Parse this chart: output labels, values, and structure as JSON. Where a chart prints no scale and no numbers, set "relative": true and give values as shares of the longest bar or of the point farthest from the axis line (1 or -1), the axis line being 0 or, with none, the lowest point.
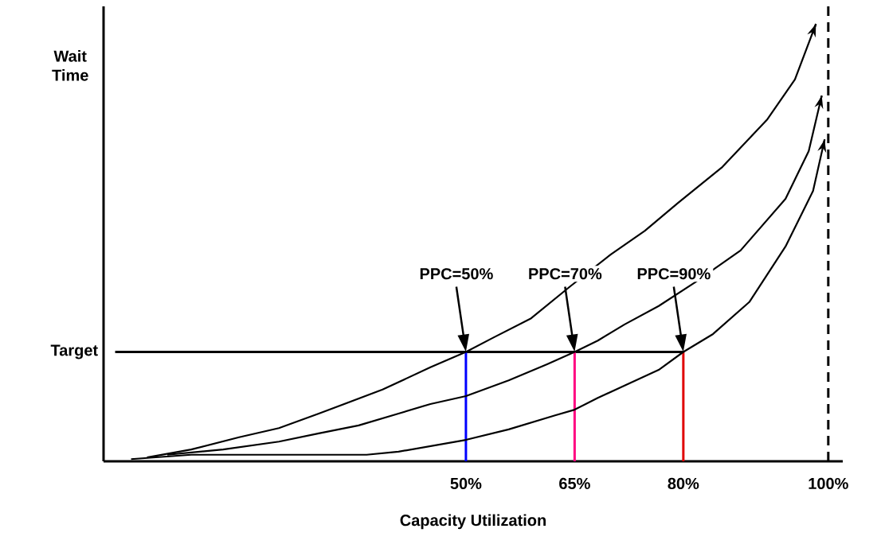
{
  "chart_data": {
    "type": "line",
    "relative": true,
    "xlabel": "Capacity Utilization",
    "ylabel": "Wait Time",
    "xlim": [
      0,
      102
    ],
    "xticks": [
      {
        "value": 50,
        "label": "50%"
      },
      {
        "value": 65,
        "label": "65%"
      },
      {
        "value": 80,
        "label": "80%"
      },
      {
        "value": 100,
        "label": "100%"
      }
    ],
    "series": [
      {
        "color": "#000000",
        "x": [
          6.0,
          12.1,
          18.7,
          24.2,
          29.7,
          38.5,
          45.1,
          50,
          53.7,
          59.0,
          64.4,
          70.0,
          74.7,
          79.3,
          85.4,
          91.6,
          95.4,
          98.3
        ],
        "values": [
          0.009,
          0.027,
          0.055,
          0.076,
          0.109,
          0.164,
          0.215,
          0.25,
          0.282,
          0.327,
          0.4,
          0.473,
          0.527,
          0.591,
          0.673,
          0.782,
          0.873,
          1.0
        ]
      },
      {
        "color": "#000000",
        "x": [
          8.8,
          16.5,
          24.2,
          29.7,
          35.2,
          40.7,
          45.1,
          50,
          55.9,
          61.2,
          65,
          68.2,
          71.9,
          76.6,
          81.6,
          87.9,
          94.1,
          97.3,
          99.1
        ],
        "values": [
          0.015,
          0.027,
          0.045,
          0.064,
          0.082,
          0.109,
          0.131,
          0.149,
          0.185,
          0.222,
          0.25,
          0.276,
          0.313,
          0.355,
          0.409,
          0.482,
          0.6,
          0.709,
          0.836
        ]
      },
      {
        "color": "#000000",
        "x": [
          3.8,
          12.1,
          36.3,
          40.7,
          50,
          55.9,
          62.3,
          65,
          68.2,
          71.9,
          76.6,
          80,
          84.1,
          89.1,
          94.1,
          97.9,
          99.5
        ],
        "values": [
          0.005,
          0.015,
          0.015,
          0.022,
          0.049,
          0.073,
          0.105,
          0.118,
          0.145,
          0.173,
          0.209,
          0.25,
          0.291,
          0.364,
          0.491,
          0.618,
          0.736
        ]
      }
    ],
    "ref_lines": [
      {
        "axis": "y",
        "value": 0.25,
        "label": "Target",
        "color": "#000000"
      },
      {
        "axis": "x",
        "value": 50,
        "color": "#0000ff"
      },
      {
        "axis": "x",
        "value": 65,
        "color": "#ff0080"
      },
      {
        "axis": "x",
        "value": 80,
        "color": "#e00000"
      },
      {
        "axis": "x",
        "value": 100,
        "color": "#000000",
        "line_style": "dashed"
      }
    ],
    "annotations": [
      "PPC=50%",
      "PPC=70%",
      "PPC=90%"
    ],
    "marker": "none",
    "line_style": "solid"
  }
}
